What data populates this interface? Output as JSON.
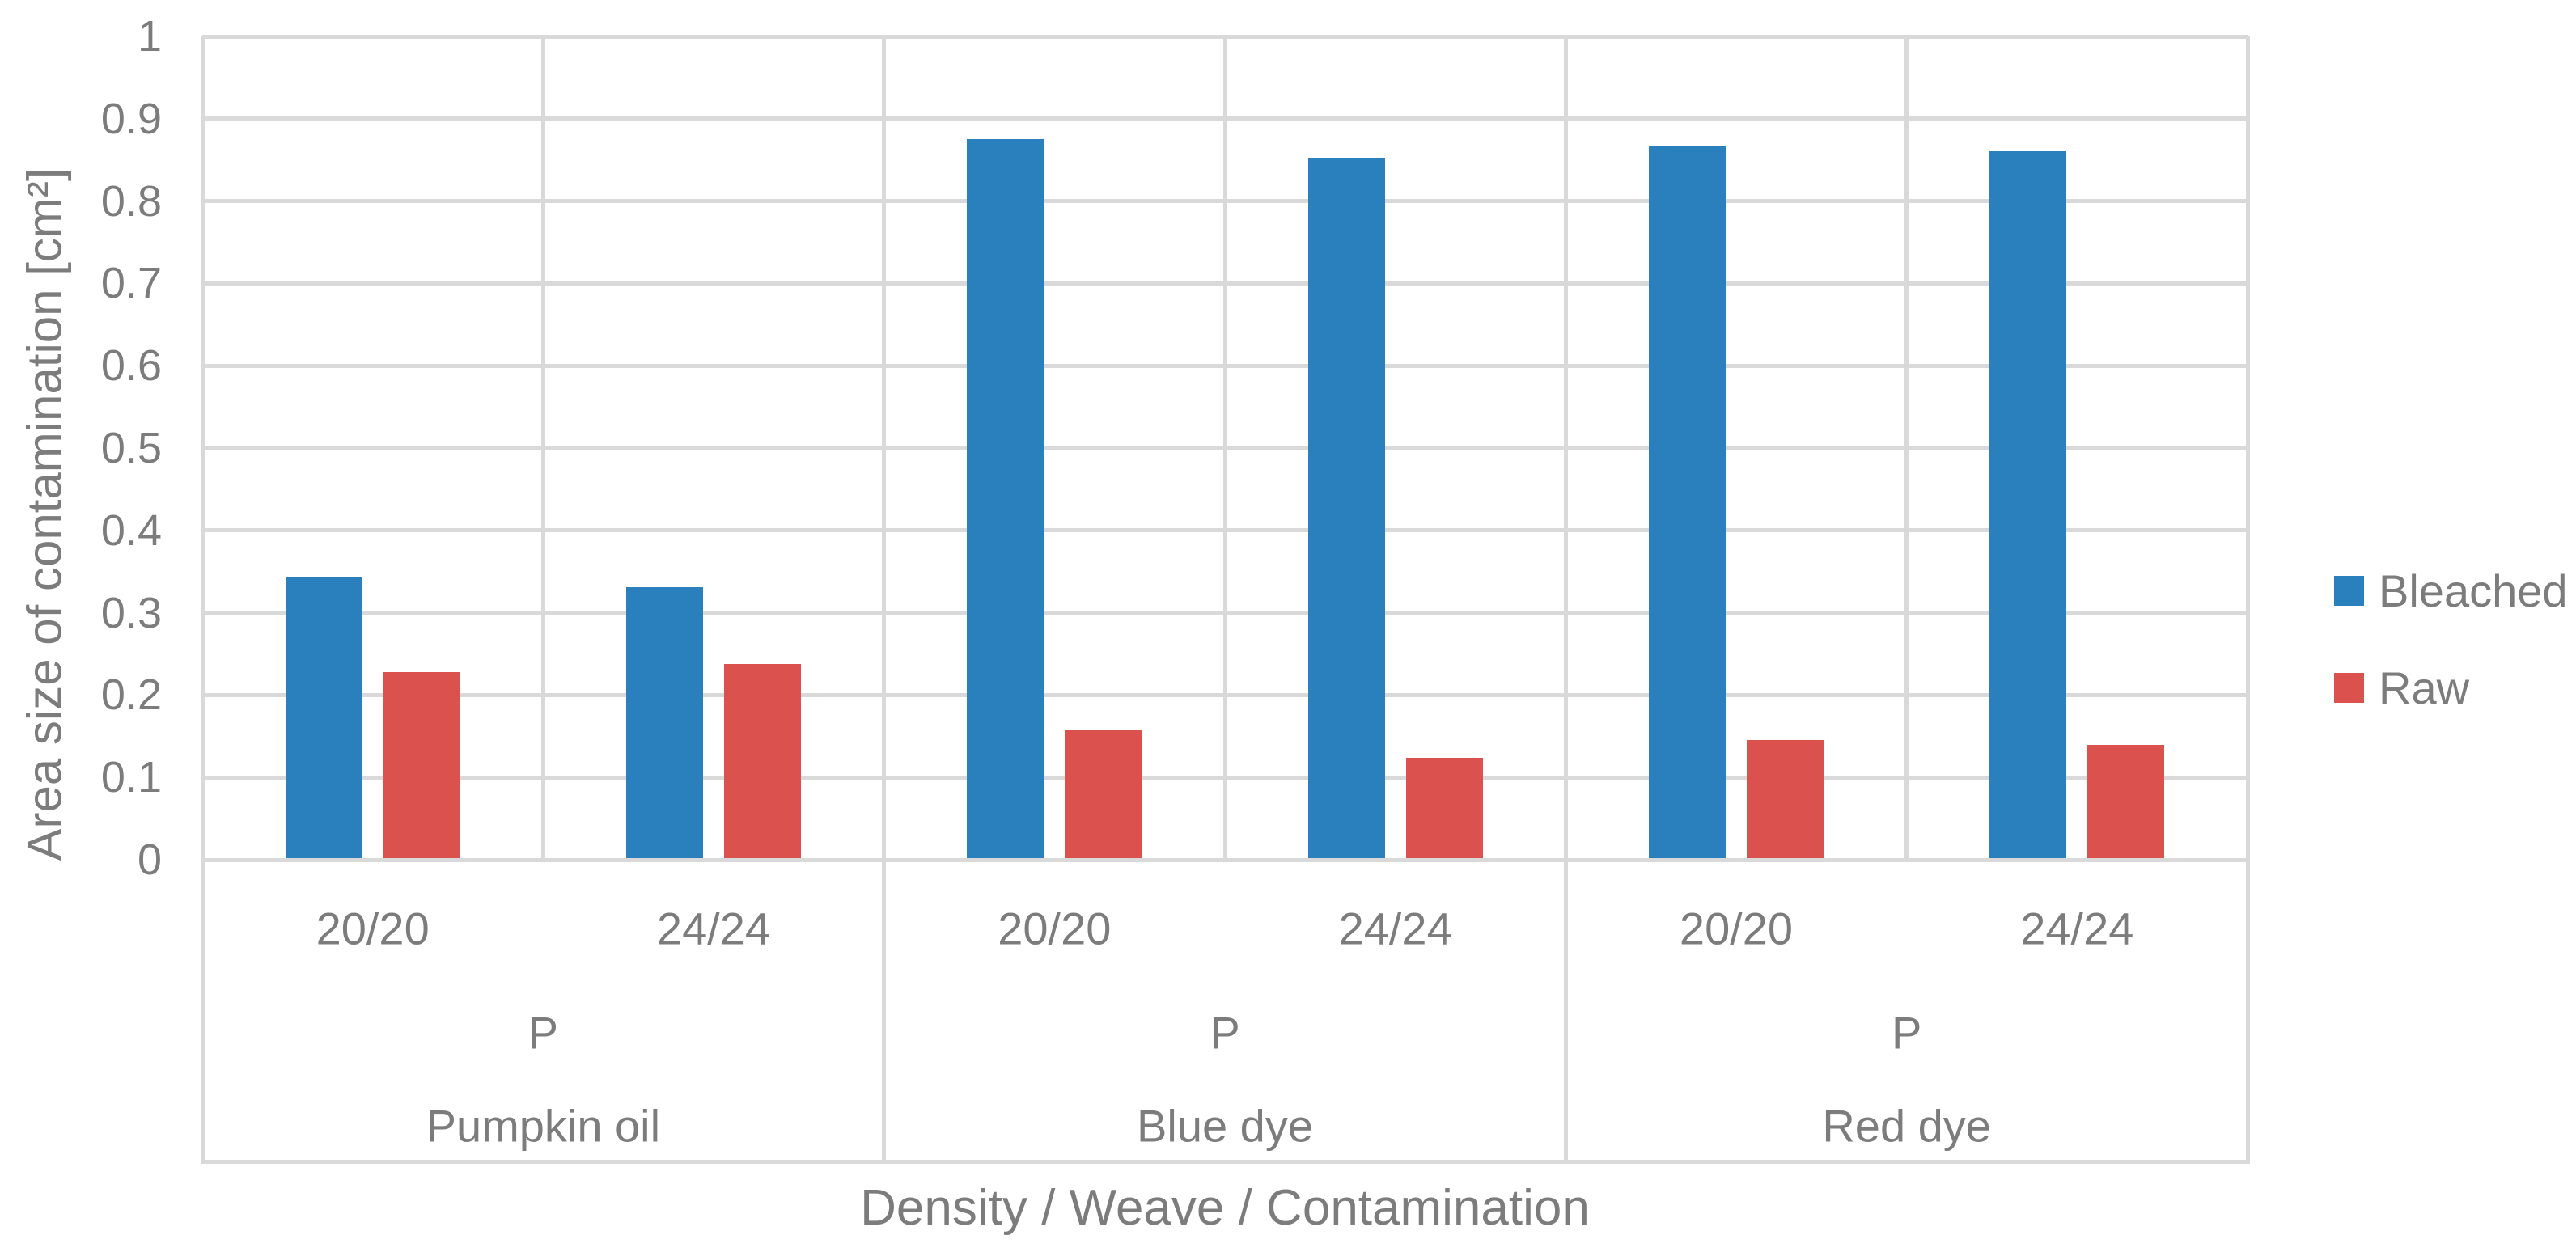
{
  "chart_data": {
    "type": "bar",
    "title": "",
    "xlabel": "Density / Weave / Contamination",
    "ylabel": "Area size of contamination [cm²]",
    "ylim": [
      0,
      1
    ],
    "ytick_step": 0.1,
    "ytick_labels": [
      "1",
      "0.9",
      "0.8",
      "0.7",
      "0.6",
      "0.5",
      "0.4",
      "0.3",
      "0.2",
      "0.1",
      "0"
    ],
    "grid": true,
    "legend_position": "right",
    "groups": [
      {
        "contamination": "Pumpkin oil",
        "weave": "P",
        "densities": [
          "20/20",
          "24/24"
        ]
      },
      {
        "contamination": "Blue dye",
        "weave": "P",
        "densities": [
          "20/20",
          "24/24"
        ]
      },
      {
        "contamination": "Red dye",
        "weave": "P",
        "densities": [
          "20/20",
          "24/24"
        ]
      }
    ],
    "categories": [
      "Pumpkin oil / P / 20/20",
      "Pumpkin oil / P / 24/24",
      "Blue dye / P / 20/20",
      "Blue dye / P / 24/24",
      "Red dye / P / 20/20",
      "Red dye / P / 24/24"
    ],
    "series": [
      {
        "name": "Bleached",
        "color": "#2980BD",
        "values": [
          0.343,
          0.331,
          0.875,
          0.853,
          0.866,
          0.861
        ]
      },
      {
        "name": "Raw",
        "color": "#DA514E",
        "values": [
          0.228,
          0.238,
          0.158,
          0.124,
          0.145,
          0.139
        ]
      }
    ]
  },
  "style": {
    "text_color": "#7C7C7C",
    "gridline_color": "#D9D9D9",
    "background": "#FFFFFF"
  }
}
